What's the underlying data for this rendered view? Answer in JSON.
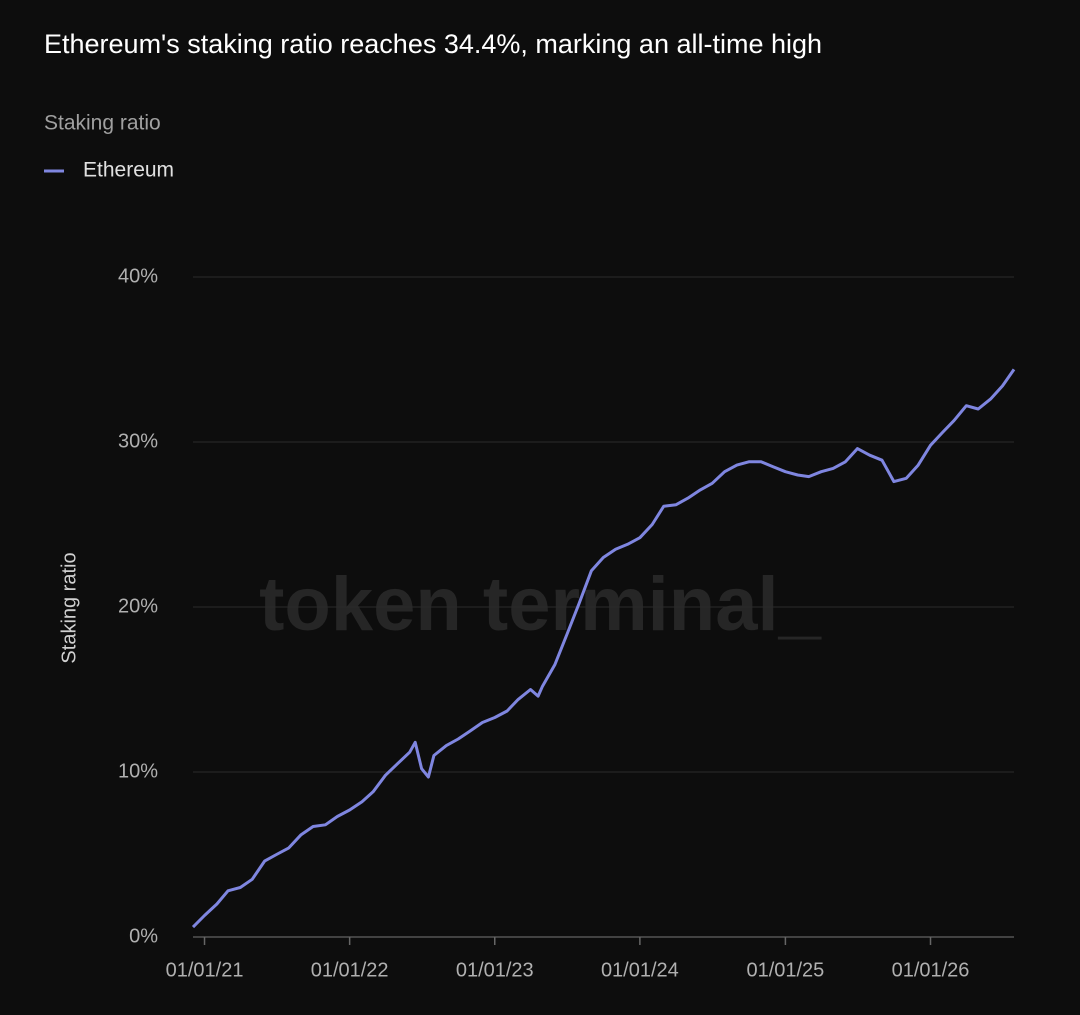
{
  "chart_data": {
    "type": "line",
    "title": "Ethereum's staking ratio reaches 34.4%, marking an all-time high",
    "legend_title": "Staking ratio",
    "y_label": "Staking ratio",
    "watermark": "token terminal_",
    "x": [
      "2020-12-03",
      "2021-01-01",
      "2021-02-01",
      "2021-03-01",
      "2021-04-01",
      "2021-05-01",
      "2021-06-01",
      "2021-07-01",
      "2021-08-01",
      "2021-09-01",
      "2021-10-01",
      "2021-11-01",
      "2021-12-01",
      "2022-01-01",
      "2022-02-01",
      "2022-03-01",
      "2022-04-01",
      "2022-05-01",
      "2022-06-01",
      "2022-06-15",
      "2022-07-01",
      "2022-07-18",
      "2022-08-01",
      "2022-09-01",
      "2022-10-01",
      "2022-11-01",
      "2022-12-01",
      "2023-01-01",
      "2023-02-01",
      "2023-03-01",
      "2023-04-01",
      "2023-04-20",
      "2023-05-01",
      "2023-06-01",
      "2023-07-01",
      "2023-08-01",
      "2023-09-01",
      "2023-10-01",
      "2023-11-01",
      "2023-12-01",
      "2024-01-01",
      "2024-02-01",
      "2024-03-01",
      "2024-04-01",
      "2024-05-01",
      "2024-06-01",
      "2024-07-01",
      "2024-08-01",
      "2024-09-01",
      "2024-10-01",
      "2024-11-01",
      "2024-12-01",
      "2025-01-01",
      "2025-02-01",
      "2025-03-01",
      "2025-04-01",
      "2025-05-01",
      "2025-06-01",
      "2025-07-01",
      "2025-08-01",
      "2025-09-01",
      "2025-10-01",
      "2025-11-01",
      "2025-12-01",
      "2026-01-01",
      "2026-02-01",
      "2026-03-01",
      "2026-04-01",
      "2026-05-01",
      "2026-06-01",
      "2026-07-01",
      "2026-07-30"
    ],
    "series": [
      {
        "name": "Ethereum",
        "color": "#7f86e0",
        "values": [
          0.6,
          1.3,
          2.0,
          2.8,
          3.0,
          3.5,
          4.6,
          5.0,
          5.4,
          6.2,
          6.7,
          6.8,
          7.3,
          7.7,
          8.2,
          8.8,
          9.8,
          10.5,
          11.2,
          11.8,
          10.2,
          9.7,
          11.0,
          11.6,
          12.0,
          12.5,
          13.0,
          13.3,
          13.7,
          14.4,
          15.0,
          14.6,
          15.2,
          16.5,
          18.3,
          20.2,
          22.2,
          23.0,
          23.5,
          23.8,
          24.2,
          25.0,
          26.1,
          26.2,
          26.6,
          27.1,
          27.5,
          28.2,
          28.6,
          28.8,
          28.8,
          28.5,
          28.2,
          28.0,
          27.9,
          28.2,
          28.4,
          28.8,
          29.6,
          29.2,
          28.9,
          27.6,
          27.8,
          28.6,
          29.8,
          30.6,
          31.3,
          32.2,
          32.0,
          32.6,
          33.4,
          34.4
        ]
      }
    ],
    "xlim": [
      "2020-12-03",
      "2026-07-30"
    ],
    "xticks": [
      {
        "value": "2021-01-01",
        "label": "01/01/21"
      },
      {
        "value": "2022-01-01",
        "label": "01/01/22"
      },
      {
        "value": "2023-01-01",
        "label": "01/01/23"
      },
      {
        "value": "2024-01-01",
        "label": "01/01/24"
      },
      {
        "value": "2025-01-01",
        "label": "01/01/25"
      },
      {
        "value": "2026-01-01",
        "label": "01/01/26"
      }
    ],
    "ylim": [
      0,
      40
    ],
    "yticks": [
      {
        "value": 0,
        "label": "0%"
      },
      {
        "value": 10,
        "label": "10%"
      },
      {
        "value": 20,
        "label": "20%"
      },
      {
        "value": 30,
        "label": "30%"
      },
      {
        "value": 40,
        "label": "40%"
      }
    ],
    "grid": true
  }
}
